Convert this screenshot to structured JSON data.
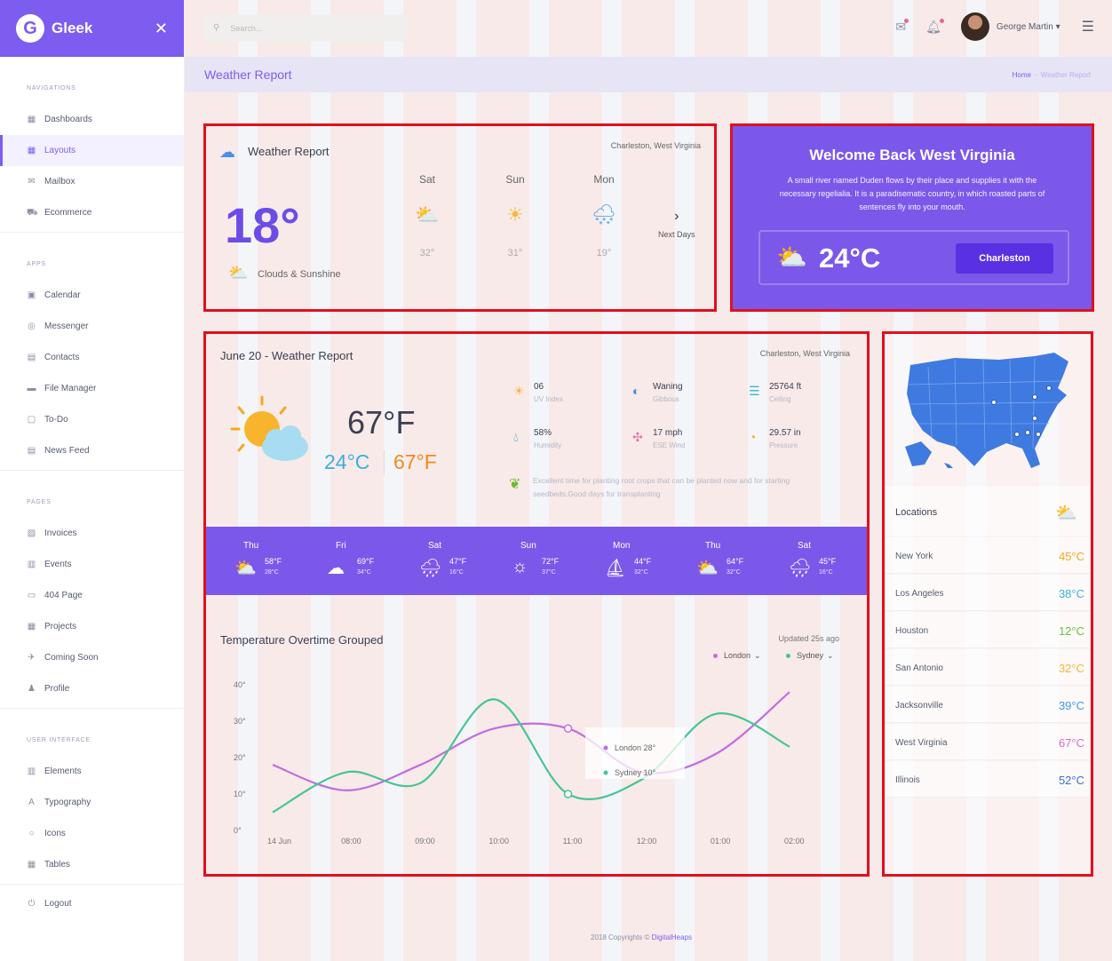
{
  "app": {
    "brand": "Gleek",
    "logo_letter": "G"
  },
  "search": {
    "placeholder": "Search..."
  },
  "user": {
    "name": "George Martin"
  },
  "sidebar": {
    "sections": [
      {
        "heading": "NAVIGATIONS",
        "items": [
          {
            "label": "Dashboards",
            "icon": "grid-icon"
          },
          {
            "label": "Layouts",
            "icon": "layout-icon",
            "active": true
          },
          {
            "label": "Mailbox",
            "icon": "mail-icon"
          },
          {
            "label": "Ecommerce",
            "icon": "cart-icon"
          }
        ]
      },
      {
        "heading": "APPS",
        "items": [
          {
            "label": "Calendar",
            "icon": "calendar-icon"
          },
          {
            "label": "Messenger",
            "icon": "chat-icon"
          },
          {
            "label": "Contacts",
            "icon": "contacts-icon"
          },
          {
            "label": "File Manager",
            "icon": "folder-icon"
          },
          {
            "label": "To-Do",
            "icon": "clipboard-icon"
          },
          {
            "label": "News Feed",
            "icon": "news-icon"
          }
        ]
      },
      {
        "heading": "PAGES",
        "items": [
          {
            "label": "Invoices",
            "icon": "invoice-icon"
          },
          {
            "label": "Events",
            "icon": "events-icon"
          },
          {
            "label": "404 Page",
            "icon": "error-icon"
          },
          {
            "label": "Projects",
            "icon": "projects-icon"
          },
          {
            "label": "Coming Soon",
            "icon": "rocket-icon"
          },
          {
            "label": "Profile",
            "icon": "user-icon"
          }
        ]
      },
      {
        "heading": "USER INTERFACE",
        "items": [
          {
            "label": "Elements",
            "icon": "elements-icon"
          },
          {
            "label": "Typography",
            "icon": "typography-icon"
          },
          {
            "label": "Icons",
            "icon": "circle-icon"
          },
          {
            "label": "Tables",
            "icon": "table-icon"
          }
        ]
      }
    ],
    "logout": "Logout"
  },
  "page": {
    "title": "Weather Report",
    "breadcrumb_home": "Home",
    "breadcrumb_sep": "-",
    "breadcrumb_current": "Weather Report"
  },
  "weather_card": {
    "title": "Weather Report",
    "location": "Charleston, West Virginia",
    "temperature": "18°",
    "condition": "Clouds & Sunshine",
    "days": [
      {
        "name": "Sat",
        "temp": "32°",
        "icon": "sun-cloud-icon"
      },
      {
        "name": "Sun",
        "temp": "31°",
        "icon": "sun-icon"
      },
      {
        "name": "Mon",
        "temp": "19°",
        "icon": "snow-cloud-icon"
      }
    ],
    "next_label": "Next Days"
  },
  "welcome_card": {
    "title": "Welcome Back West Virginia",
    "text": "A small river named Duden flows by their place and supplies it with the necessary regelialia. It is a paradisematic country, in which roasted parts of sentences fly into your mouth.",
    "temperature": "24°C",
    "button": "Charleston"
  },
  "june_card": {
    "title": "June 20 - Weather Report",
    "location": "Charleston, West Virginia",
    "temp_f": "67°F",
    "temp_c": "24°C",
    "temp_f2": "67°F",
    "stats": [
      {
        "value": "06",
        "label": "UV Index",
        "icon": "uv-icon",
        "color": "#f6b63b"
      },
      {
        "value": "Waning",
        "label": "Gibbous",
        "icon": "moon-icon",
        "color": "#3a8de0"
      },
      {
        "value": "25764 ft",
        "label": "Ceiling",
        "icon": "ceiling-icon",
        "color": "#3ab6c8"
      },
      {
        "value": "58%",
        "label": "Humidity",
        "icon": "drop-icon",
        "color": "#2f8ee0"
      },
      {
        "value": "17 mph",
        "label": "ESE Wind",
        "icon": "wind-icon",
        "color": "#e66fa8"
      },
      {
        "value": "29.57 in",
        "label": "Pressure",
        "icon": "gauge-icon",
        "color": "#f6a623"
      }
    ],
    "tip": "Excellent time for planting root crops that can be planted now and for starting seedbeds.Good days for transplanting",
    "forecast": [
      {
        "day": "Thu",
        "f": "58°F",
        "c": "28°C"
      },
      {
        "day": "Fri",
        "f": "69°F",
        "c": "34°C"
      },
      {
        "day": "Sat",
        "f": "47°F",
        "c": "16°C"
      },
      {
        "day": "Sun",
        "f": "72°F",
        "c": "37°C"
      },
      {
        "day": "Mon",
        "f": "44°F",
        "c": "32°C"
      },
      {
        "day": "Thu",
        "f": "64°F",
        "c": "32°C"
      },
      {
        "day": "Sat",
        "f": "45°F",
        "c": "16°C"
      }
    ],
    "chart_title": "Temperature Overtime Grouped",
    "chart_updated": "Updated 25s ago",
    "legend": {
      "london": "London",
      "sydney": "Sydney"
    },
    "tooltip": {
      "london": "London 28°",
      "sydney": "Sydney 10°"
    }
  },
  "chart_data": {
    "type": "line",
    "title": "Temperature Overtime Grouped",
    "xlabel": "",
    "ylabel": "",
    "x": [
      "14 Jun",
      "08:00",
      "09:00",
      "10:00",
      "11:00",
      "12:00",
      "01:00",
      "02:00"
    ],
    "yticks": [
      "0°",
      "10°",
      "20°",
      "30°",
      "40°"
    ],
    "ylim": [
      0,
      40
    ],
    "series": [
      {
        "name": "London",
        "color": "#c36be0",
        "values": [
          18,
          11,
          18,
          28,
          28,
          16,
          21,
          38
        ]
      },
      {
        "name": "Sydney",
        "color": "#45c596",
        "values": [
          5,
          16,
          13,
          36,
          10,
          14,
          32,
          23
        ]
      }
    ]
  },
  "locations_card": {
    "title": "Locations",
    "rows": [
      {
        "name": "New York",
        "temp": "45°C",
        "color": "#f6a623"
      },
      {
        "name": "Los Angeles",
        "temp": "38°C",
        "color": "#3ab6d8"
      },
      {
        "name": "Houston",
        "temp": "12°C",
        "color": "#64c43a"
      },
      {
        "name": "San Antonio",
        "temp": "32°C",
        "color": "#f6b63b"
      },
      {
        "name": "Jacksonville",
        "temp": "39°C",
        "color": "#3a9ee0"
      },
      {
        "name": "West Virginia",
        "temp": "67°C",
        "color": "#d66ad8"
      },
      {
        "name": "Illinois",
        "temp": "52°C",
        "color": "#3a6ee0"
      }
    ]
  },
  "footer": {
    "copyright": "2018 Copyrights ©",
    "brand": "DigitalHeaps"
  }
}
